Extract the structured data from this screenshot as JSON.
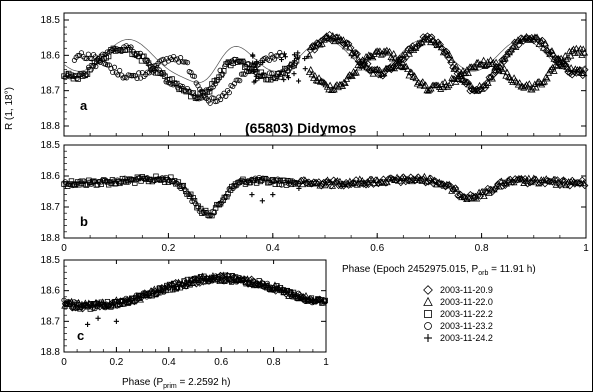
{
  "chart_data": {
    "type": "scatter",
    "title": "(65803) Didymos",
    "ylabel": "R (1, 18°)",
    "ylim": [
      18.8,
      18.5
    ],
    "y_ticks": [
      "18.5",
      "18.6",
      "18.7",
      "18.8"
    ],
    "x_ticks": [
      "0",
      "0.2",
      "0.4",
      "0.6",
      "0.8",
      "1"
    ],
    "panels": [
      {
        "letter": "a",
        "xlim": [
          0,
          1
        ],
        "description_series": [
          {
            "name": "model",
            "style": "line"
          },
          {
            "name": "2003-11-20.9",
            "marker": "diamond"
          },
          {
            "name": "2003-11-22.0",
            "marker": "triangle"
          },
          {
            "name": "2003-11-22.2",
            "marker": "square"
          },
          {
            "name": "2003-11-23.2",
            "marker": "circle"
          },
          {
            "name": "2003-11-24.2",
            "marker": "cross"
          }
        ]
      },
      {
        "letter": "b",
        "xlim": [
          0,
          1
        ],
        "xlabel_parts": {
          "main": "Phase (Epoch 2452975.015, P",
          "sub": "orb",
          "tail": " = 11.91 h)"
        }
      },
      {
        "letter": "c",
        "xlim": [
          0,
          1
        ],
        "xlabel_parts": {
          "main": "Phase (P",
          "sub": "prim",
          "tail": " = 2.2592 h)"
        }
      }
    ],
    "legend": [
      {
        "marker": "diamond",
        "label": "2003-11-20.9"
      },
      {
        "marker": "triangle",
        "label": "2003-11-22.0"
      },
      {
        "marker": "square",
        "label": "2003-11-22.2"
      },
      {
        "marker": "circle",
        "label": "2003-11-23.2"
      },
      {
        "marker": "cross",
        "label": "2003-11-24.2"
      }
    ]
  }
}
